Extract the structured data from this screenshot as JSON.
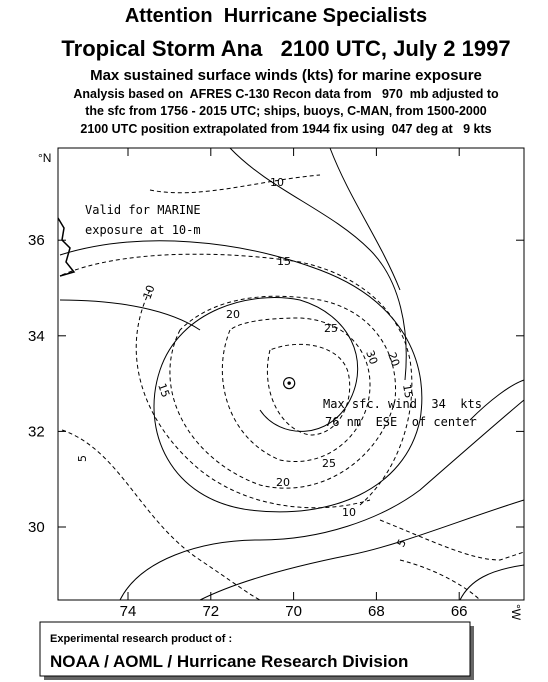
{
  "header": {
    "title": "Attention  Hurricane Specialists",
    "storm": "Tropical Storm Ana   2100 UTC, July 2 1997",
    "subtitle": "Max sustained surface winds (kts) for marine exposure",
    "notes": [
      "Analysis based on  AFRES C-130 Recon data from   970  mb adjusted to",
      "the sfc from 1756 - 2015 UTC; ships, buoys, C-MAN, from 1500-2000",
      "2100 UTC position extrapolated from 1944 fix using  047 deg at   9 kts"
    ]
  },
  "map": {
    "lat_unit": "°N",
    "lon_unit": "°W",
    "lat_ticks": [
      30,
      32,
      34,
      36
    ],
    "lon_ticks": [
      74,
      72,
      70,
      68,
      66
    ],
    "valid_note": [
      "Valid for MARINE",
      "exposure at 10-m"
    ],
    "max_wind_note": [
      "Max sfc. wind  34  kts",
      "76 nm  ESE  of center"
    ],
    "contour_labels": [
      10,
      15,
      10,
      20,
      25,
      30,
      20,
      15,
      15,
      5,
      25,
      20,
      10,
      5
    ]
  },
  "footer": {
    "line1": "Experimental research product of :",
    "line2": "NOAA / AOML / Hurricane Research Division"
  }
}
